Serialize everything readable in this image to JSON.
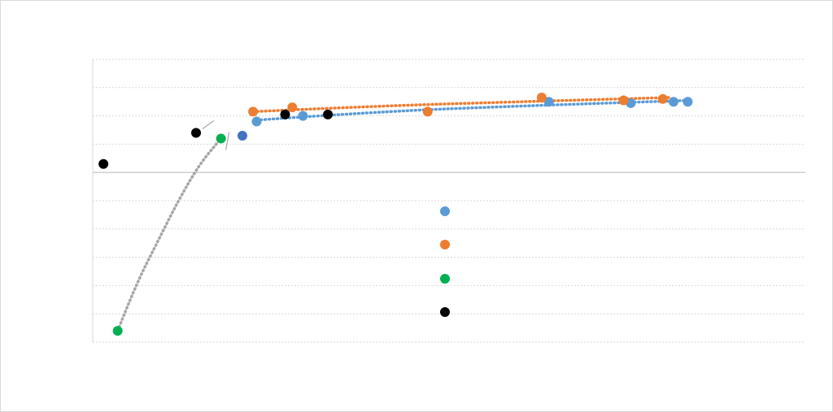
{
  "chart_data": {
    "type": "scatter",
    "title": "",
    "xlabel": "",
    "ylabel": "",
    "xlim": [
      0,
      100
    ],
    "ylim": [
      -6,
      4
    ],
    "grid": true,
    "legend_position": "center-bottom",
    "colors": {
      "blue": "#5b9bd5",
      "orange": "#ed7d31",
      "green": "#00b050",
      "black": "#000000",
      "dark_blue": "#4472c4",
      "grid": "#d9d9d9",
      "axis": "#bfbfbf",
      "fit_gray": "#a6a6a6"
    },
    "series": [
      {
        "key": "blue",
        "x": [
          23,
          29.5,
          64,
          75.5,
          81.5,
          83.5
        ],
        "y": [
          1.8,
          2.0,
          2.5,
          2.45,
          2.5,
          2.5
        ],
        "trendline": [
          [
            23,
            1.85
          ],
          [
            40,
            2.15
          ],
          [
            60,
            2.35
          ],
          [
            84,
            2.55
          ]
        ]
      },
      {
        "key": "orange",
        "x": [
          22.5,
          28,
          47,
          63,
          74.5,
          80
        ],
        "y": [
          2.15,
          2.3,
          2.15,
          2.65,
          2.55,
          2.6
        ],
        "trendline": [
          [
            22.5,
            2.15
          ],
          [
            40,
            2.35
          ],
          [
            60,
            2.5
          ],
          [
            81,
            2.65
          ]
        ]
      },
      {
        "key": "green",
        "x": [
          3.5,
          18
        ],
        "y": [
          -5.6,
          1.2
        ],
        "trendline": [
          [
            3.5,
            -5.6
          ],
          [
            6,
            -4
          ],
          [
            9,
            -2.5
          ],
          [
            12,
            -1
          ],
          [
            15,
            0.3
          ],
          [
            18,
            1.2
          ]
        ]
      },
      {
        "key": "black",
        "x": [
          1.5,
          14.5,
          27,
          33
        ],
        "y": [
          0.3,
          1.4,
          2.05,
          2.05
        ]
      },
      {
        "key": "dark_blue",
        "x": [
          21
        ],
        "y": [
          1.3
        ]
      }
    ],
    "legend_markers": [
      "blue",
      "orange",
      "green",
      "black"
    ]
  }
}
